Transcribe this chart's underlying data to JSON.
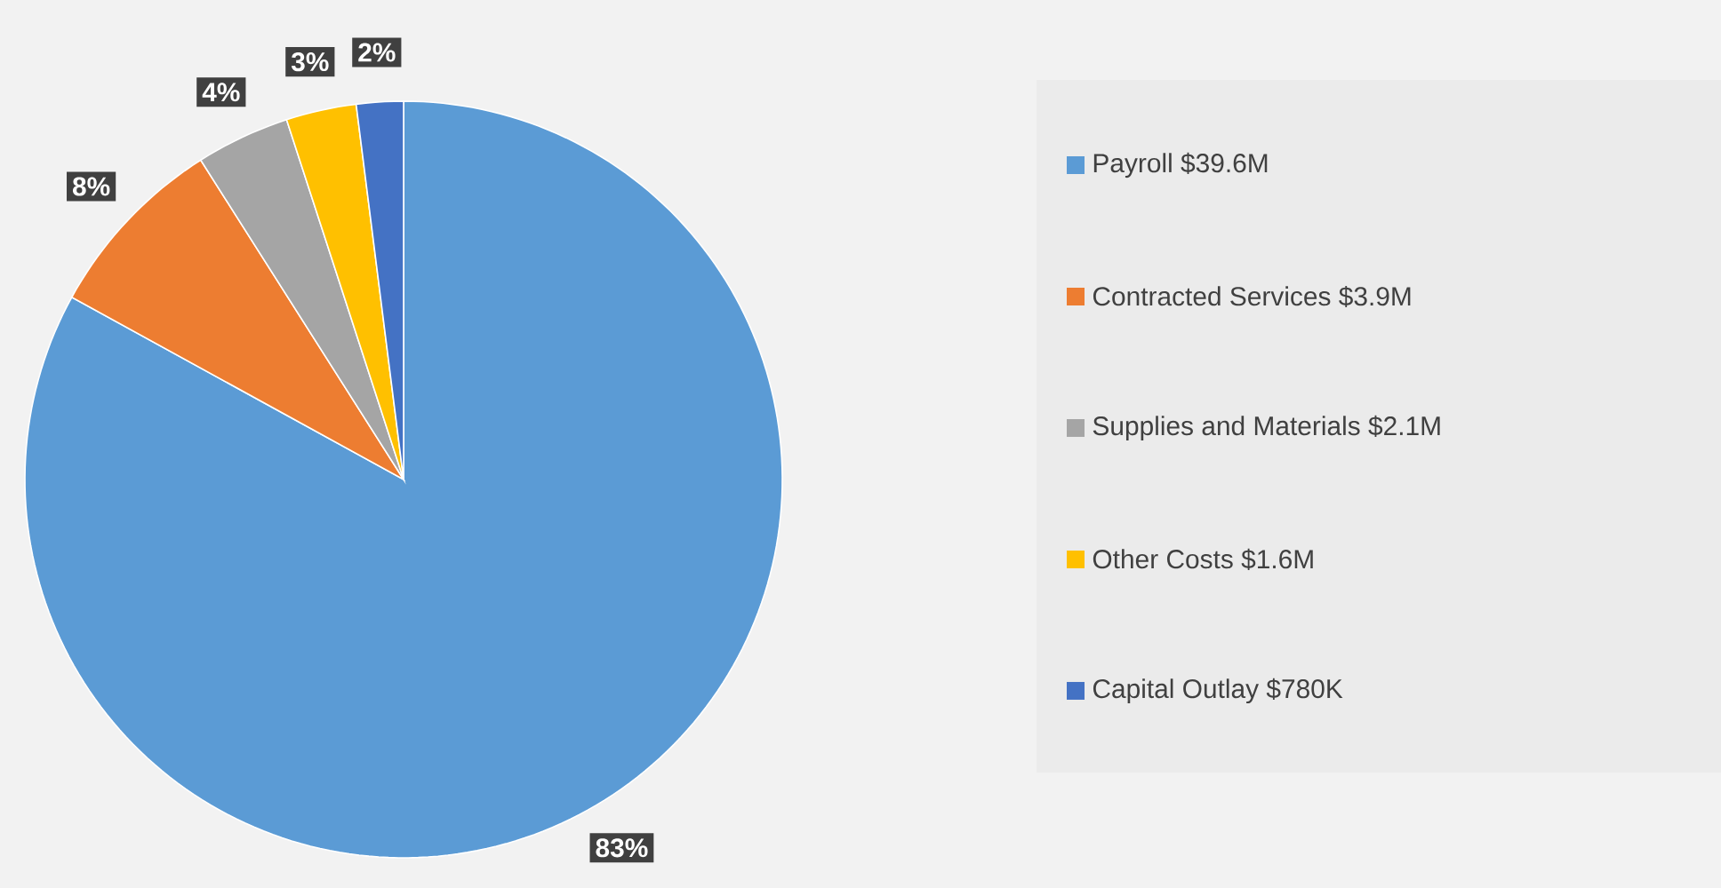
{
  "chart_data": {
    "type": "pie",
    "categories": [
      "Payroll $39.6M",
      "Contracted Services $3.9M",
      "Supplies and Materials $2.1M",
      "Other Costs $1.6M",
      "Capital Outlay $780K"
    ],
    "values": [
      83,
      8,
      4,
      3,
      2
    ],
    "value_labels": [
      "83%",
      "8%",
      "4%",
      "3%",
      "2%"
    ],
    "colors": [
      "#5b9bd5",
      "#ed7d31",
      "#a5a5a5",
      "#ffc000",
      "#4472c4"
    ],
    "legend": "right"
  }
}
